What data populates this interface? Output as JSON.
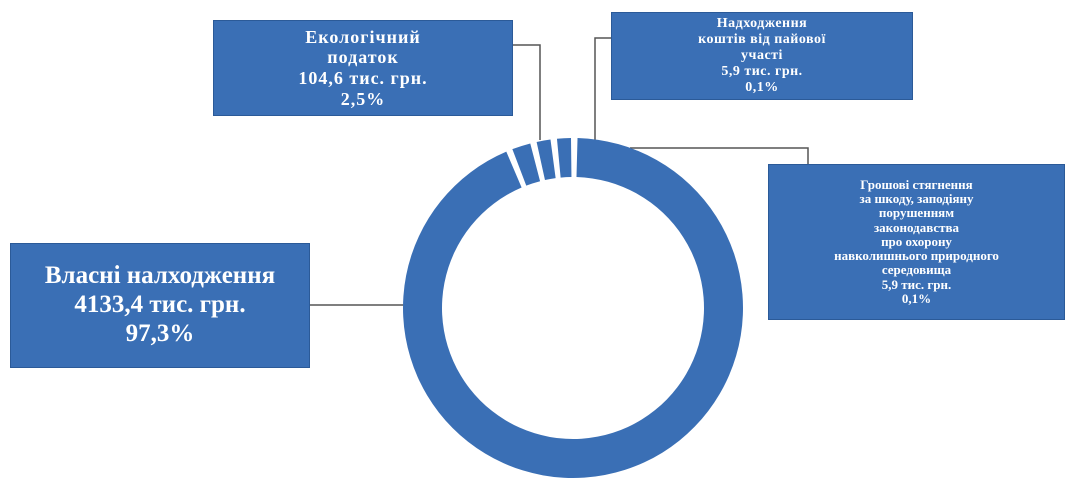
{
  "chart_data": {
    "type": "pie",
    "style": "donut",
    "categories": [
      "Власні налходження",
      "Екологічний податок",
      "Надходження коштів від пайової участі",
      "Грошові стягнення за шкоду, заподіяну порушенням законодавства про охорону навколишнього природного середовища"
    ],
    "values": [
      4133.4,
      104.6,
      5.9,
      5.9
    ],
    "percents": [
      97.3,
      2.5,
      0.1,
      0.1
    ],
    "unit": "тис. грн.",
    "color": "#3a6fb5"
  },
  "labels": {
    "own": [
      "Власні налходження",
      "4133,4 тис. грн.",
      "97,3%"
    ],
    "eco": [
      "Екологічний",
      "податок",
      "104,6 тис. грн.",
      "2,5%"
    ],
    "share": [
      "Надходження",
      "коштів від пайової",
      "участі",
      "5,9 тис. грн.",
      "0,1%"
    ],
    "fines": [
      "Грошові стягнення",
      "за шкоду, заподіяну",
      "порушенням",
      "законодавства",
      "про охорону",
      "навколишнього природного",
      "середовища",
      "5,9 тис. грн.",
      "0,1%"
    ]
  }
}
